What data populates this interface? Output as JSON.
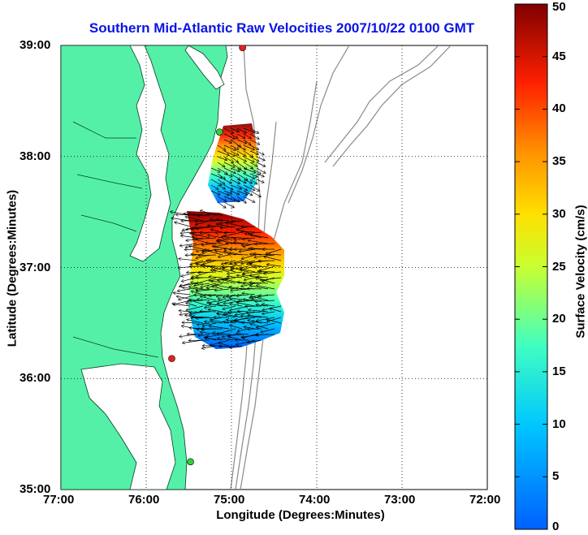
{
  "title": "Southern Mid-Atlantic Raw Velocities 2007/10/22 0100 GMT",
  "x_axis": {
    "label": "Longitude (Degrees:Minutes)",
    "ticks": [
      "77:00",
      "76:00",
      "75:00",
      "74:00",
      "73:00",
      "72:00"
    ]
  },
  "y_axis": {
    "label": "Latitude (Degrees:Minutes)",
    "ticks": [
      "39:00",
      "38:00",
      "37:00",
      "36:00",
      "35:00"
    ]
  },
  "colorbar": {
    "label": "Surface Velocity (cm/s)",
    "ticks": [
      "50",
      "45",
      "40",
      "35",
      "30",
      "25",
      "20",
      "15",
      "10",
      "5",
      "0"
    ],
    "min": 0,
    "max": 50,
    "colormap": "jet"
  },
  "map_extent": {
    "lon_west": -77,
    "lon_east": -72,
    "lat_south": 35,
    "lat_north": 39
  },
  "colors": {
    "land": "#55f0a8",
    "bathymetry_contours": "#8a8a8a",
    "title": "#0a14e6"
  },
  "radar_sites": [
    {
      "lon": -74.87,
      "lat": 38.98,
      "color": "#e62020"
    },
    {
      "lon": -75.14,
      "lat": 38.22,
      "color": "#30d030"
    },
    {
      "lon": -75.7,
      "lat": 36.18,
      "color": "#e62020"
    },
    {
      "lon": -75.48,
      "lat": 35.25,
      "color": "#30d030"
    }
  ]
}
